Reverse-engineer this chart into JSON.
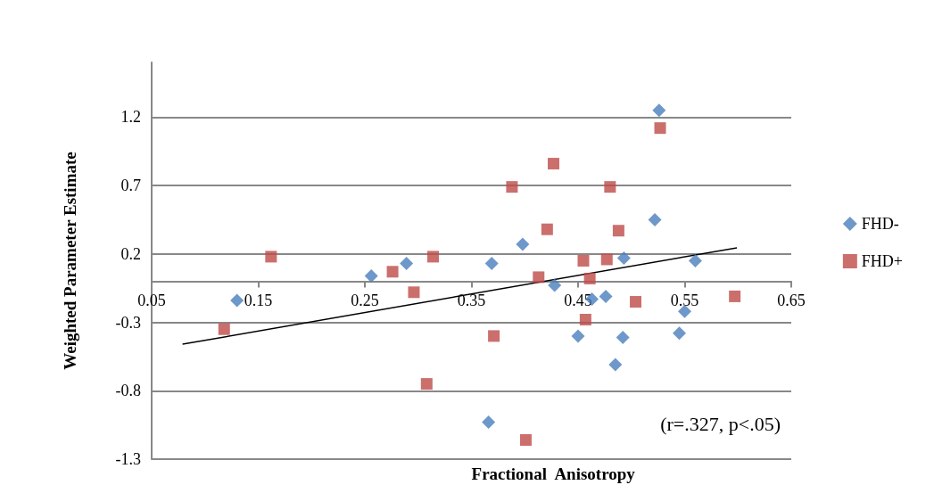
{
  "chart_data": {
    "type": "scatter",
    "xlabel": "Fractional  Anisotropy",
    "ylabel": "Weighted Parameter Estimate",
    "xlim": [
      0.05,
      0.65
    ],
    "xticks": [
      0.05,
      0.15,
      0.25,
      0.35,
      0.45,
      0.55,
      0.65
    ],
    "ylim": [
      -1.3,
      1.6
    ],
    "yticks": [
      -1.3,
      -0.8,
      -0.3,
      0.2,
      0.7,
      1.2
    ],
    "grid": "y",
    "legend": "right",
    "annotations": [
      "(r=.327, p<.05)"
    ],
    "series": [
      {
        "name": "FHD-",
        "color": "#4a7ebb",
        "marker": "diamond",
        "x": [
          0.13,
          0.256,
          0.289,
          0.369,
          0.398,
          0.428,
          0.463,
          0.476,
          0.493,
          0.522,
          0.526,
          0.56,
          0.55,
          0.45,
          0.492,
          0.545,
          0.485,
          0.366
        ],
        "values": [
          -0.14,
          0.04,
          0.13,
          0.13,
          0.27,
          -0.03,
          -0.13,
          -0.11,
          0.17,
          0.45,
          1.25,
          0.15,
          -0.22,
          -0.4,
          -0.41,
          -0.38,
          -0.61,
          -1.03
        ]
      },
      {
        "name": "FHD+",
        "color": "#be4b48",
        "marker": "square",
        "x": [
          0.118,
          0.162,
          0.276,
          0.296,
          0.314,
          0.308,
          0.371,
          0.388,
          0.427,
          0.421,
          0.413,
          0.455,
          0.461,
          0.477,
          0.48,
          0.488,
          0.504,
          0.457,
          0.527,
          0.597,
          0.401
        ],
        "values": [
          -0.35,
          0.18,
          0.07,
          -0.08,
          0.18,
          -0.75,
          -0.4,
          0.69,
          0.86,
          0.38,
          0.03,
          0.15,
          0.02,
          0.16,
          0.69,
          0.37,
          -0.15,
          -0.28,
          1.12,
          -0.11,
          -1.16
        ]
      },
      {
        "type": "line",
        "color": "#000000",
        "marker": "none",
        "x": [
          0.079,
          0.599
        ],
        "values": [
          -0.46,
          0.245
        ]
      }
    ]
  }
}
